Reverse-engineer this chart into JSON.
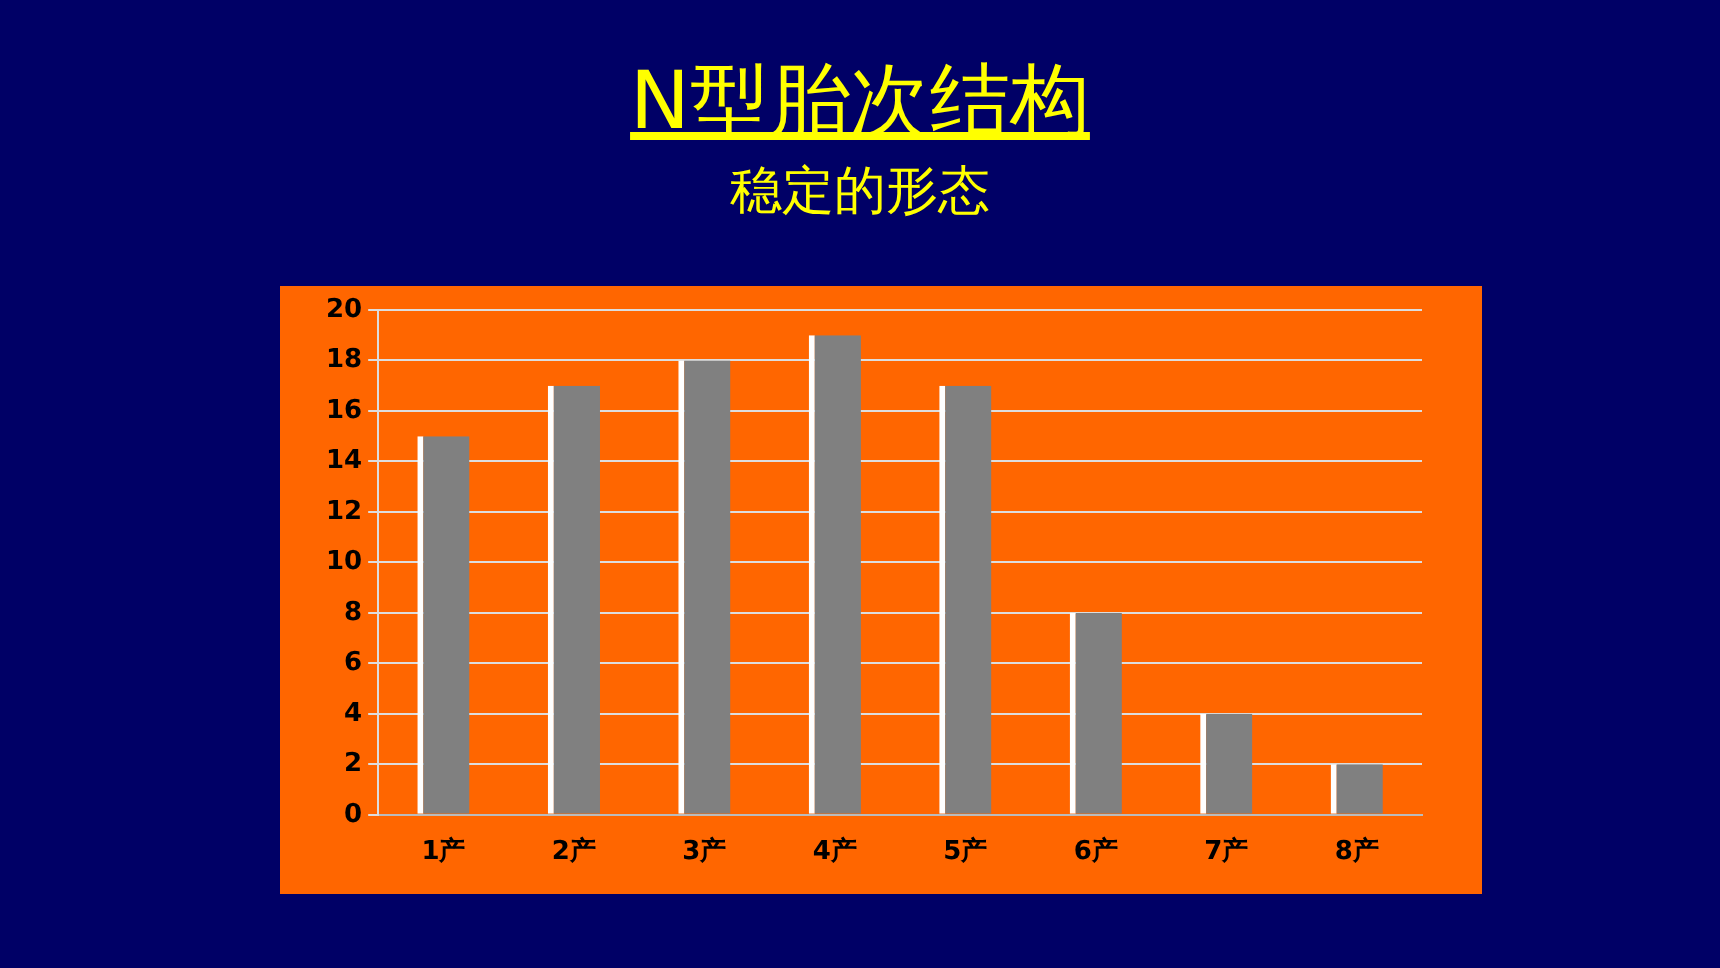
{
  "chart_data": {
    "type": "bar",
    "title": "N型胎次结构",
    "subtitle": "稳定的形态",
    "categories": [
      "1产",
      "2产",
      "3产",
      "4产",
      "5产",
      "6产",
      "7产",
      "8产"
    ],
    "values": [
      15,
      17,
      18,
      19,
      17,
      8,
      4,
      2
    ],
    "color": "#808080",
    "ylim": [
      0,
      20
    ],
    "yticks": [
      0,
      2,
      4,
      6,
      8,
      10,
      12,
      14,
      16,
      18,
      20
    ],
    "grid": "y",
    "legend": false
  }
}
